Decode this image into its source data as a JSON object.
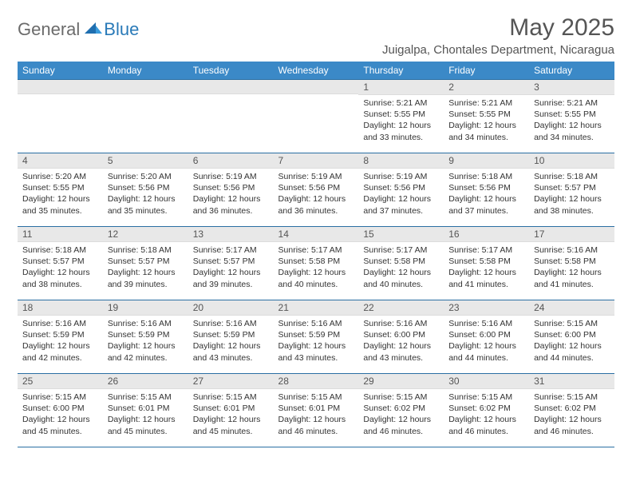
{
  "brand": {
    "general": "General",
    "blue": "Blue"
  },
  "title": "May 2025",
  "location": "Juigalpa, Chontales Department, Nicaragua",
  "colors": {
    "header_bg": "#3b89c7",
    "header_text": "#ffffff",
    "border": "#2a6fa3",
    "daynum_bg": "#e8e8e8",
    "body_text": "#333333",
    "title_text": "#555555",
    "logo_general": "#6b6b6b",
    "logo_blue": "#2a7ab8"
  },
  "day_labels": [
    "Sunday",
    "Monday",
    "Tuesday",
    "Wednesday",
    "Thursday",
    "Friday",
    "Saturday"
  ],
  "weeks": [
    [
      {
        "n": "",
        "sr": "",
        "ss": "",
        "dl": ""
      },
      {
        "n": "",
        "sr": "",
        "ss": "",
        "dl": ""
      },
      {
        "n": "",
        "sr": "",
        "ss": "",
        "dl": ""
      },
      {
        "n": "",
        "sr": "",
        "ss": "",
        "dl": ""
      },
      {
        "n": "1",
        "sr": "Sunrise: 5:21 AM",
        "ss": "Sunset: 5:55 PM",
        "dl": "Daylight: 12 hours and 33 minutes."
      },
      {
        "n": "2",
        "sr": "Sunrise: 5:21 AM",
        "ss": "Sunset: 5:55 PM",
        "dl": "Daylight: 12 hours and 34 minutes."
      },
      {
        "n": "3",
        "sr": "Sunrise: 5:21 AM",
        "ss": "Sunset: 5:55 PM",
        "dl": "Daylight: 12 hours and 34 minutes."
      }
    ],
    [
      {
        "n": "4",
        "sr": "Sunrise: 5:20 AM",
        "ss": "Sunset: 5:55 PM",
        "dl": "Daylight: 12 hours and 35 minutes."
      },
      {
        "n": "5",
        "sr": "Sunrise: 5:20 AM",
        "ss": "Sunset: 5:56 PM",
        "dl": "Daylight: 12 hours and 35 minutes."
      },
      {
        "n": "6",
        "sr": "Sunrise: 5:19 AM",
        "ss": "Sunset: 5:56 PM",
        "dl": "Daylight: 12 hours and 36 minutes."
      },
      {
        "n": "7",
        "sr": "Sunrise: 5:19 AM",
        "ss": "Sunset: 5:56 PM",
        "dl": "Daylight: 12 hours and 36 minutes."
      },
      {
        "n": "8",
        "sr": "Sunrise: 5:19 AM",
        "ss": "Sunset: 5:56 PM",
        "dl": "Daylight: 12 hours and 37 minutes."
      },
      {
        "n": "9",
        "sr": "Sunrise: 5:18 AM",
        "ss": "Sunset: 5:56 PM",
        "dl": "Daylight: 12 hours and 37 minutes."
      },
      {
        "n": "10",
        "sr": "Sunrise: 5:18 AM",
        "ss": "Sunset: 5:57 PM",
        "dl": "Daylight: 12 hours and 38 minutes."
      }
    ],
    [
      {
        "n": "11",
        "sr": "Sunrise: 5:18 AM",
        "ss": "Sunset: 5:57 PM",
        "dl": "Daylight: 12 hours and 38 minutes."
      },
      {
        "n": "12",
        "sr": "Sunrise: 5:18 AM",
        "ss": "Sunset: 5:57 PM",
        "dl": "Daylight: 12 hours and 39 minutes."
      },
      {
        "n": "13",
        "sr": "Sunrise: 5:17 AM",
        "ss": "Sunset: 5:57 PM",
        "dl": "Daylight: 12 hours and 39 minutes."
      },
      {
        "n": "14",
        "sr": "Sunrise: 5:17 AM",
        "ss": "Sunset: 5:58 PM",
        "dl": "Daylight: 12 hours and 40 minutes."
      },
      {
        "n": "15",
        "sr": "Sunrise: 5:17 AM",
        "ss": "Sunset: 5:58 PM",
        "dl": "Daylight: 12 hours and 40 minutes."
      },
      {
        "n": "16",
        "sr": "Sunrise: 5:17 AM",
        "ss": "Sunset: 5:58 PM",
        "dl": "Daylight: 12 hours and 41 minutes."
      },
      {
        "n": "17",
        "sr": "Sunrise: 5:16 AM",
        "ss": "Sunset: 5:58 PM",
        "dl": "Daylight: 12 hours and 41 minutes."
      }
    ],
    [
      {
        "n": "18",
        "sr": "Sunrise: 5:16 AM",
        "ss": "Sunset: 5:59 PM",
        "dl": "Daylight: 12 hours and 42 minutes."
      },
      {
        "n": "19",
        "sr": "Sunrise: 5:16 AM",
        "ss": "Sunset: 5:59 PM",
        "dl": "Daylight: 12 hours and 42 minutes."
      },
      {
        "n": "20",
        "sr": "Sunrise: 5:16 AM",
        "ss": "Sunset: 5:59 PM",
        "dl": "Daylight: 12 hours and 43 minutes."
      },
      {
        "n": "21",
        "sr": "Sunrise: 5:16 AM",
        "ss": "Sunset: 5:59 PM",
        "dl": "Daylight: 12 hours and 43 minutes."
      },
      {
        "n": "22",
        "sr": "Sunrise: 5:16 AM",
        "ss": "Sunset: 6:00 PM",
        "dl": "Daylight: 12 hours and 43 minutes."
      },
      {
        "n": "23",
        "sr": "Sunrise: 5:16 AM",
        "ss": "Sunset: 6:00 PM",
        "dl": "Daylight: 12 hours and 44 minutes."
      },
      {
        "n": "24",
        "sr": "Sunrise: 5:15 AM",
        "ss": "Sunset: 6:00 PM",
        "dl": "Daylight: 12 hours and 44 minutes."
      }
    ],
    [
      {
        "n": "25",
        "sr": "Sunrise: 5:15 AM",
        "ss": "Sunset: 6:00 PM",
        "dl": "Daylight: 12 hours and 45 minutes."
      },
      {
        "n": "26",
        "sr": "Sunrise: 5:15 AM",
        "ss": "Sunset: 6:01 PM",
        "dl": "Daylight: 12 hours and 45 minutes."
      },
      {
        "n": "27",
        "sr": "Sunrise: 5:15 AM",
        "ss": "Sunset: 6:01 PM",
        "dl": "Daylight: 12 hours and 45 minutes."
      },
      {
        "n": "28",
        "sr": "Sunrise: 5:15 AM",
        "ss": "Sunset: 6:01 PM",
        "dl": "Daylight: 12 hours and 46 minutes."
      },
      {
        "n": "29",
        "sr": "Sunrise: 5:15 AM",
        "ss": "Sunset: 6:02 PM",
        "dl": "Daylight: 12 hours and 46 minutes."
      },
      {
        "n": "30",
        "sr": "Sunrise: 5:15 AM",
        "ss": "Sunset: 6:02 PM",
        "dl": "Daylight: 12 hours and 46 minutes."
      },
      {
        "n": "31",
        "sr": "Sunrise: 5:15 AM",
        "ss": "Sunset: 6:02 PM",
        "dl": "Daylight: 12 hours and 46 minutes."
      }
    ]
  ]
}
